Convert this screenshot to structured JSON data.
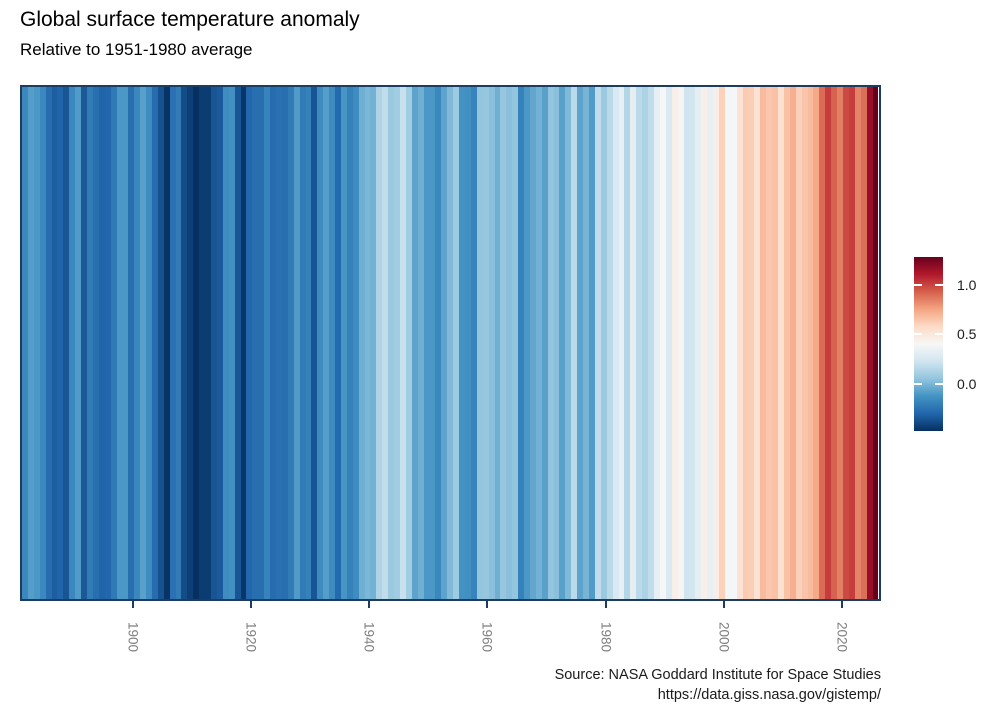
{
  "chart_data": {
    "type": "heatmap",
    "title": "Global surface temperature anomaly",
    "subtitle": "Relative to 1951-1980 average",
    "caption": [
      "Source: NASA Goddard Institute for Space Studies",
      "https://data.giss.nasa.gov/gistemp/"
    ],
    "xlabel": "",
    "ylabel": "",
    "start_year": 1880,
    "end_year": 2024,
    "values": [
      -0.17,
      -0.09,
      -0.11,
      -0.17,
      -0.28,
      -0.33,
      -0.31,
      -0.36,
      -0.17,
      -0.1,
      -0.35,
      -0.22,
      -0.27,
      -0.31,
      -0.3,
      -0.23,
      -0.11,
      -0.11,
      -0.27,
      -0.17,
      -0.08,
      -0.15,
      -0.28,
      -0.37,
      -0.47,
      -0.26,
      -0.22,
      -0.39,
      -0.43,
      -0.48,
      -0.44,
      -0.44,
      -0.36,
      -0.34,
      -0.15,
      -0.14,
      -0.36,
      -0.46,
      -0.3,
      -0.27,
      -0.27,
      -0.19,
      -0.28,
      -0.26,
      -0.27,
      -0.22,
      -0.1,
      -0.22,
      -0.2,
      -0.36,
      -0.16,
      -0.09,
      -0.16,
      -0.29,
      -0.12,
      -0.2,
      -0.15,
      -0.03,
      0.0,
      -0.02,
      0.13,
      0.18,
      0.07,
      0.09,
      0.2,
      0.09,
      -0.07,
      -0.03,
      -0.11,
      -0.11,
      -0.17,
      -0.07,
      0.01,
      0.08,
      -0.13,
      -0.14,
      -0.19,
      0.05,
      0.06,
      0.03,
      -0.03,
      0.06,
      0.03,
      0.05,
      -0.2,
      -0.11,
      -0.06,
      -0.02,
      -0.08,
      0.05,
      0.03,
      -0.08,
      0.01,
      0.16,
      -0.07,
      -0.01,
      -0.1,
      0.18,
      0.07,
      0.16,
      0.26,
      0.32,
      0.14,
      0.31,
      0.16,
      0.12,
      0.18,
      0.32,
      0.39,
      0.27,
      0.45,
      0.41,
      0.22,
      0.23,
      0.31,
      0.45,
      0.33,
      0.46,
      0.61,
      0.38,
      0.39,
      0.53,
      0.63,
      0.62,
      0.53,
      0.68,
      0.64,
      0.66,
      0.54,
      0.66,
      0.72,
      0.61,
      0.65,
      0.68,
      0.74,
      0.9,
      1.01,
      0.92,
      0.85,
      0.98,
      1.01,
      0.84,
      0.89,
      1.17,
      1.28
    ],
    "x_axis": {
      "tick_years": [
        1900,
        1920,
        1940,
        1960,
        1980,
        2000,
        2020
      ],
      "label_color": "#7f7f7f",
      "tick_color": "#1e3c5f"
    },
    "color_scale": {
      "domain": [
        -0.48,
        1.28
      ],
      "palette": [
        "#053061",
        "#2166ac",
        "#4393c3",
        "#92c5de",
        "#d1e5f0",
        "#f7f7f7",
        "#fddbc7",
        "#f4a582",
        "#d6604d",
        "#b2182b",
        "#67001f"
      ],
      "ticks": [
        {
          "value": 1.0,
          "label": "1.0"
        },
        {
          "value": 0.5,
          "label": "0.5"
        },
        {
          "value": 0.0,
          "label": "0.0"
        }
      ],
      "legend_tick_color": "#ffffff",
      "legend_position": "right"
    },
    "panel_border_color": "#1e3c5f",
    "grid": "off"
  }
}
